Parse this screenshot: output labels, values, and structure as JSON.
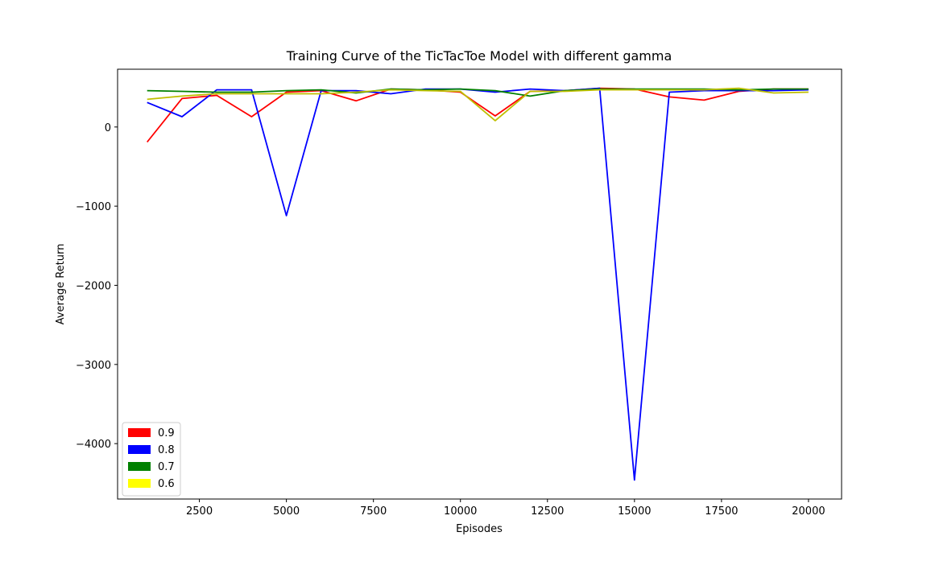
{
  "chart_data": {
    "type": "line",
    "title": "Training Curve of the TicTacToe Model with different gamma",
    "xlabel": "Episodes",
    "ylabel": "Average Return",
    "xlim": [
      150,
      20950
    ],
    "ylim": [
      -4700,
      730
    ],
    "x_ticks": [
      2500,
      5000,
      7500,
      10000,
      12500,
      15000,
      17500,
      20000
    ],
    "y_ticks": [
      0,
      -1000,
      -2000,
      -3000,
      -4000
    ],
    "grid": false,
    "legend_position": "lower-left",
    "x": [
      1000,
      2000,
      3000,
      4000,
      5000,
      6000,
      7000,
      8000,
      9000,
      10000,
      11000,
      12000,
      13000,
      14000,
      15000,
      16000,
      17000,
      18000,
      19000,
      20000
    ],
    "series": [
      {
        "name": "0.9",
        "color": "#ff0000",
        "values": [
          -190,
          360,
          400,
          130,
          440,
          460,
          330,
          480,
          470,
          440,
          140,
          450,
          460,
          490,
          480,
          380,
          340,
          450,
          480,
          480
        ]
      },
      {
        "name": "0.8",
        "color": "#0000ff",
        "values": [
          310,
          130,
          470,
          470,
          -1120,
          460,
          460,
          420,
          480,
          480,
          440,
          480,
          460,
          490,
          -4460,
          440,
          460,
          460,
          460,
          470
        ]
      },
      {
        "name": "0.7",
        "color": "#008000",
        "values": [
          460,
          450,
          440,
          440,
          460,
          470,
          430,
          480,
          470,
          480,
          460,
          390,
          460,
          480,
          480,
          480,
          480,
          470,
          480,
          480
        ]
      },
      {
        "name": "0.6",
        "color": "#bfbf00",
        "legend_color": "#ffff00",
        "values": [
          350,
          390,
          420,
          420,
          420,
          420,
          440,
          470,
          460,
          450,
          80,
          450,
          450,
          470,
          470,
          470,
          470,
          490,
          430,
          440
        ]
      }
    ]
  }
}
